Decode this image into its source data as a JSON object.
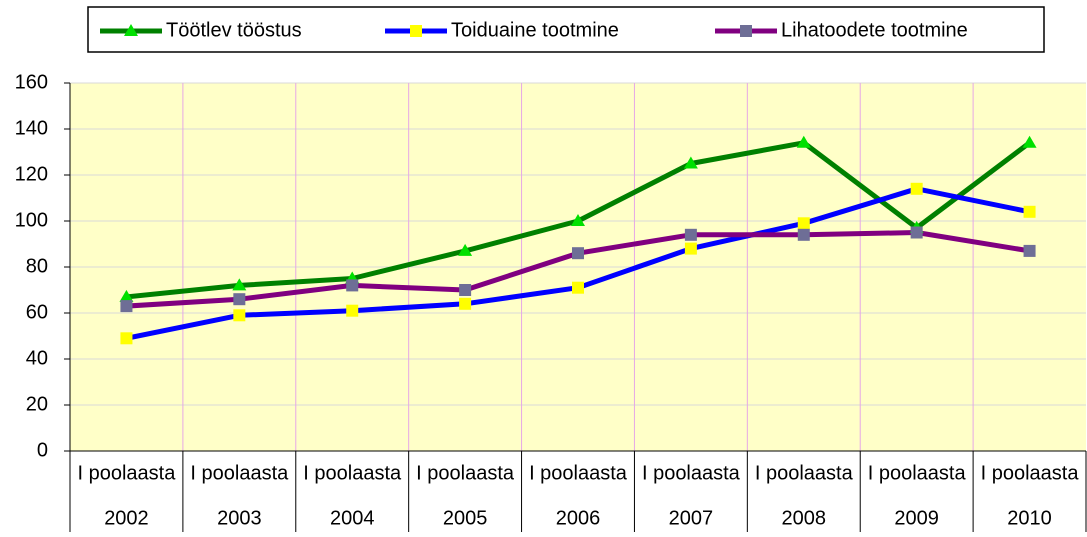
{
  "chart_data": {
    "type": "line",
    "categories": [
      [
        "I poolaasta",
        "2002"
      ],
      [
        "I poolaasta",
        "2003"
      ],
      [
        "I poolaasta",
        "2004"
      ],
      [
        "I poolaasta",
        "2005"
      ],
      [
        "I poolaasta",
        "2006"
      ],
      [
        "I poolaasta",
        "2007"
      ],
      [
        "I poolaasta",
        "2008"
      ],
      [
        "I poolaasta",
        "2009"
      ],
      [
        "I poolaasta",
        "2010"
      ]
    ],
    "series": [
      {
        "name": "Töötlev tööstus",
        "color": "#008000",
        "marker_color": "#00e000",
        "marker": "triangle",
        "values": [
          67,
          72,
          75,
          87,
          100,
          125,
          134,
          97,
          134
        ]
      },
      {
        "name": "Toiduaine tootmine",
        "color": "#0000ff",
        "marker_color": "#ffff00",
        "marker": "square",
        "values": [
          49,
          59,
          61,
          64,
          71,
          88,
          99,
          114,
          104
        ]
      },
      {
        "name": "Lihatoodete tootmine",
        "color": "#800080",
        "marker_color": "#6e6e96",
        "marker": "square",
        "values": [
          63,
          66,
          72,
          70,
          86,
          94,
          94,
          95,
          87
        ]
      }
    ],
    "ylim": [
      0,
      160
    ],
    "yticks": [
      0,
      20,
      40,
      60,
      80,
      100,
      120,
      140,
      160
    ],
    "grid": true
  }
}
